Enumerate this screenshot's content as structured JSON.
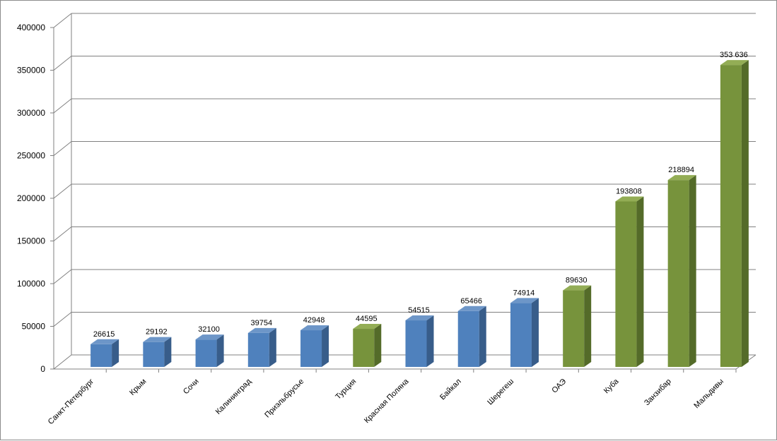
{
  "chart_data": {
    "type": "bar",
    "categories": [
      "Санкт-Петербург",
      "Крым",
      "Сочи",
      "Калининград",
      "Приэльбрусье",
      "Турция",
      "Красная Поляна",
      "Байкал",
      "Шерегеш",
      "ОАЭ",
      "Куба",
      "Занзибар",
      "Мальдивы"
    ],
    "values": [
      26615,
      29192,
      32100,
      39754,
      42948,
      44595,
      54515,
      65466,
      74914,
      89630,
      193808,
      218894,
      353636
    ],
    "data_labels": [
      "26615",
      "29192",
      "32100",
      "39754",
      "42948",
      "44595",
      "54515",
      "65466",
      "74914",
      "89630",
      "193808",
      "218894",
      "353 636"
    ],
    "bar_groups": [
      "domestic",
      "domestic",
      "domestic",
      "domestic",
      "domestic",
      "abroad",
      "domestic",
      "domestic",
      "domestic",
      "abroad",
      "abroad",
      "abroad",
      "abroad"
    ],
    "colors": {
      "domestic": {
        "front": "#4f81bd",
        "side": "#385d8a",
        "top": "#6d96c8"
      },
      "abroad": {
        "front": "#77933c",
        "side": "#546b29",
        "top": "#93ad55"
      },
      "grid": "#808080",
      "axis": "#808080"
    },
    "yticks": [
      "0",
      "50000",
      "100000",
      "150000",
      "200000",
      "250000",
      "300000",
      "350000",
      "400000"
    ],
    "ylim": [
      0,
      400000
    ],
    "grid": true,
    "legend": "none",
    "style": "3d-column"
  }
}
